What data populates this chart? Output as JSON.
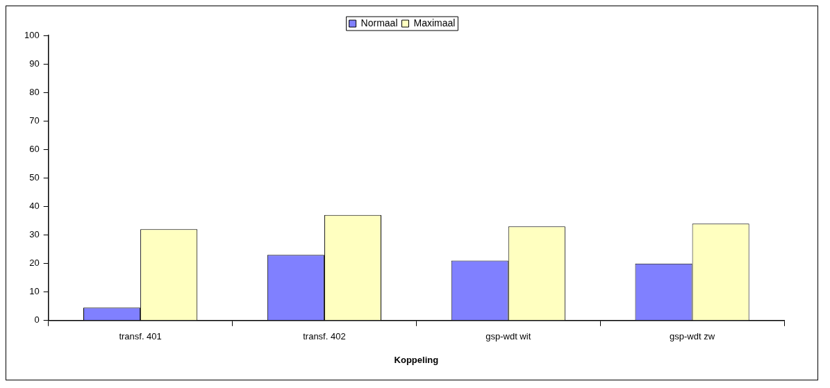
{
  "chart_data": {
    "type": "bar",
    "xlabel": "Koppeling",
    "categories": [
      "transf. 401",
      "transf. 402",
      "gsp-wdt wit",
      "gsp-wdt zw"
    ],
    "series": [
      {
        "name": "Normaal",
        "color": "#8080ff",
        "values": [
          4.5,
          23,
          21,
          20
        ]
      },
      {
        "name": "Maximaal",
        "color": "#ffffc0",
        "values": [
          32,
          37,
          33,
          34
        ]
      }
    ],
    "ylim": [
      0,
      100
    ],
    "yticks": [
      0,
      10,
      20,
      30,
      40,
      50,
      60,
      70,
      80,
      90,
      100
    ],
    "grid": false,
    "legend": "top"
  }
}
